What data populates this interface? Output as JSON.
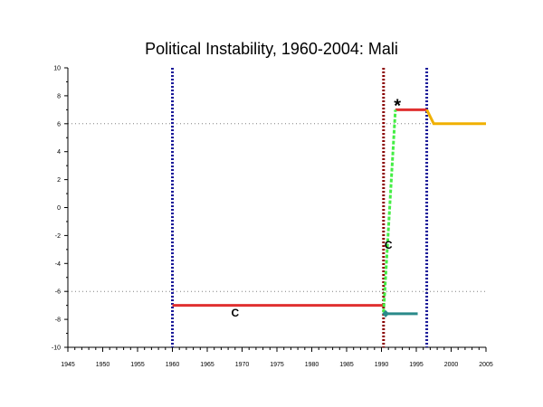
{
  "chart_data": {
    "type": "line",
    "title": "Political Instability, 1960-2004: Mali",
    "xlabel": "",
    "ylabel": "",
    "xlim": [
      1945,
      2005
    ],
    "ylim": [
      -10,
      10
    ],
    "x_ticks": [
      1945,
      1950,
      1955,
      1960,
      1965,
      1970,
      1975,
      1980,
      1985,
      1990,
      1995,
      2000,
      2005
    ],
    "y_ticks": [
      -10,
      -8,
      -6,
      -4,
      -2,
      0,
      2,
      4,
      6,
      8,
      10
    ],
    "reference_lines": [
      {
        "axis": "y",
        "value": 6,
        "style": "dotted",
        "color": "#808080"
      },
      {
        "axis": "y",
        "value": -6,
        "style": "dotted",
        "color": "#808080"
      }
    ],
    "vertical_markers": [
      {
        "x": 1960,
        "color": "#1a1a99",
        "style": "dotted"
      },
      {
        "x": 1990.3,
        "color": "#8b0000",
        "style": "dotted"
      },
      {
        "x": 1996.5,
        "color": "#1a1a99",
        "style": "dotted"
      }
    ],
    "series": [
      {
        "color": "#e03030",
        "style": "solid",
        "points": [
          [
            1960,
            -7
          ],
          [
            1990.3,
            -7
          ]
        ]
      },
      {
        "color": "#e03030",
        "style": "solid",
        "points": [
          [
            1992,
            7
          ],
          [
            1996.5,
            7
          ]
        ]
      },
      {
        "color": "#44ee44",
        "style": "dashed",
        "points": [
          [
            1990.3,
            -7.5
          ],
          [
            1992,
            7
          ]
        ]
      },
      {
        "color": "#2a8a8a",
        "style": "solid",
        "points": [
          [
            1990.4,
            -7.6
          ],
          [
            1995.2,
            -7.6
          ]
        ]
      },
      {
        "color": "#f0b000",
        "style": "solid",
        "points": [
          [
            1996.5,
            7
          ],
          [
            1997.5,
            6
          ],
          [
            2005,
            6
          ]
        ]
      }
    ],
    "annotations": [
      {
        "text": "C",
        "x": 1969,
        "y": -7.55
      },
      {
        "text": "C",
        "x": 1991,
        "y": -2.7
      },
      {
        "text": "*",
        "x": 1992.3,
        "y": 7.5
      }
    ],
    "markers": [
      {
        "shape": "diamond",
        "x": 1990.6,
        "y": -7.6,
        "color": "#2a8a8a"
      }
    ]
  }
}
